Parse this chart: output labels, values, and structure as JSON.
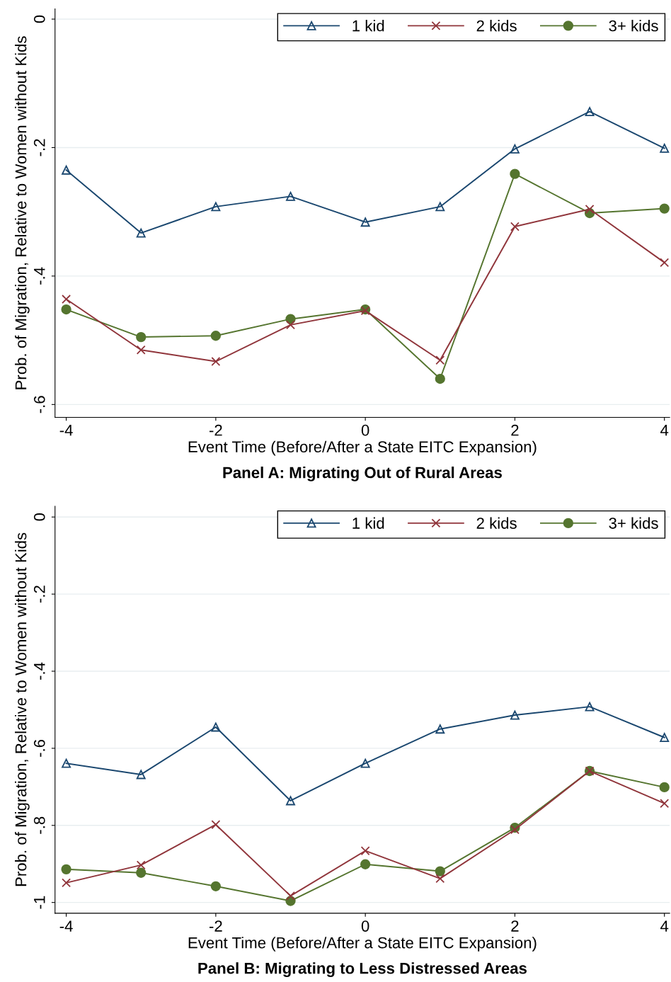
{
  "chart_data": [
    {
      "type": "line",
      "title": "Panel A: Migrating Out of Rural Areas",
      "xlabel": "Event Time (Before/After a State EITC Expansion)",
      "ylabel": "Prob. of Migration, Relative to Women without Kids",
      "x": [
        -4,
        -3,
        -2,
        -1,
        0,
        1,
        2,
        3,
        4
      ],
      "xlim": [
        -4.15,
        4.07
      ],
      "xticks": [
        -4,
        -2,
        0,
        2,
        4
      ],
      "ylim": [
        -0.62,
        0.016
      ],
      "yticks": [
        {
          "value": 0,
          "label": "0"
        },
        {
          "value": -0.2,
          "label": "-.2"
        },
        {
          "value": -0.4,
          "label": "-.4"
        },
        {
          "value": -0.6,
          "label": "-.6"
        }
      ],
      "grid": "y",
      "legend": "top right",
      "series": [
        {
          "name": "1 kid",
          "color": "#1a476f",
          "marker": "triangle",
          "values": [
            -0.235,
            -0.333,
            -0.292,
            -0.276,
            -0.316,
            -0.292,
            -0.202,
            -0.144,
            -0.201
          ]
        },
        {
          "name": "2 kids",
          "color": "#90353b",
          "marker": "cross",
          "values": [
            -0.436,
            -0.515,
            -0.533,
            -0.476,
            -0.454,
            -0.531,
            -0.323,
            -0.296,
            -0.379
          ]
        },
        {
          "name": "3+ kids",
          "color": "#55752f",
          "marker": "circle",
          "values": [
            -0.452,
            -0.495,
            -0.493,
            -0.467,
            -0.452,
            -0.56,
            -0.241,
            -0.302,
            -0.295
          ]
        }
      ]
    },
    {
      "type": "line",
      "title": "Panel B: Migrating to Less Distressed Areas",
      "xlabel": "Event Time (Before/After a State EITC Expansion)",
      "ylabel": "Prob. of Migration, Relative to Women without Kids",
      "x": [
        -4,
        -3,
        -2,
        -1,
        0,
        1,
        2,
        3,
        4
      ],
      "xlim": [
        -4.15,
        4.07
      ],
      "xticks": [
        -4,
        -2,
        0,
        2,
        4
      ],
      "ylim": [
        -1.028,
        0.028
      ],
      "yticks": [
        {
          "value": 0,
          "label": "0"
        },
        {
          "value": -0.2,
          "label": "-.2"
        },
        {
          "value": -0.4,
          "label": "-.4"
        },
        {
          "value": -0.6,
          "label": "-.6"
        },
        {
          "value": -0.8,
          "label": "-.8"
        },
        {
          "value": -1,
          "label": "-1"
        }
      ],
      "grid": "y",
      "legend": "top right",
      "series": [
        {
          "name": "1 kid",
          "color": "#1a476f",
          "marker": "triangle",
          "values": [
            -0.639,
            -0.668,
            -0.545,
            -0.736,
            -0.639,
            -0.55,
            -0.514,
            -0.492,
            -0.572
          ]
        },
        {
          "name": "2 kids",
          "color": "#90353b",
          "marker": "cross",
          "values": [
            -0.949,
            -0.903,
            -0.798,
            -0.983,
            -0.866,
            -0.938,
            -0.811,
            -0.659,
            -0.743
          ]
        },
        {
          "name": "3+ kids",
          "color": "#55752f",
          "marker": "circle",
          "values": [
            -0.914,
            -0.923,
            -0.958,
            -0.996,
            -0.901,
            -0.919,
            -0.806,
            -0.659,
            -0.701
          ]
        }
      ]
    }
  ]
}
